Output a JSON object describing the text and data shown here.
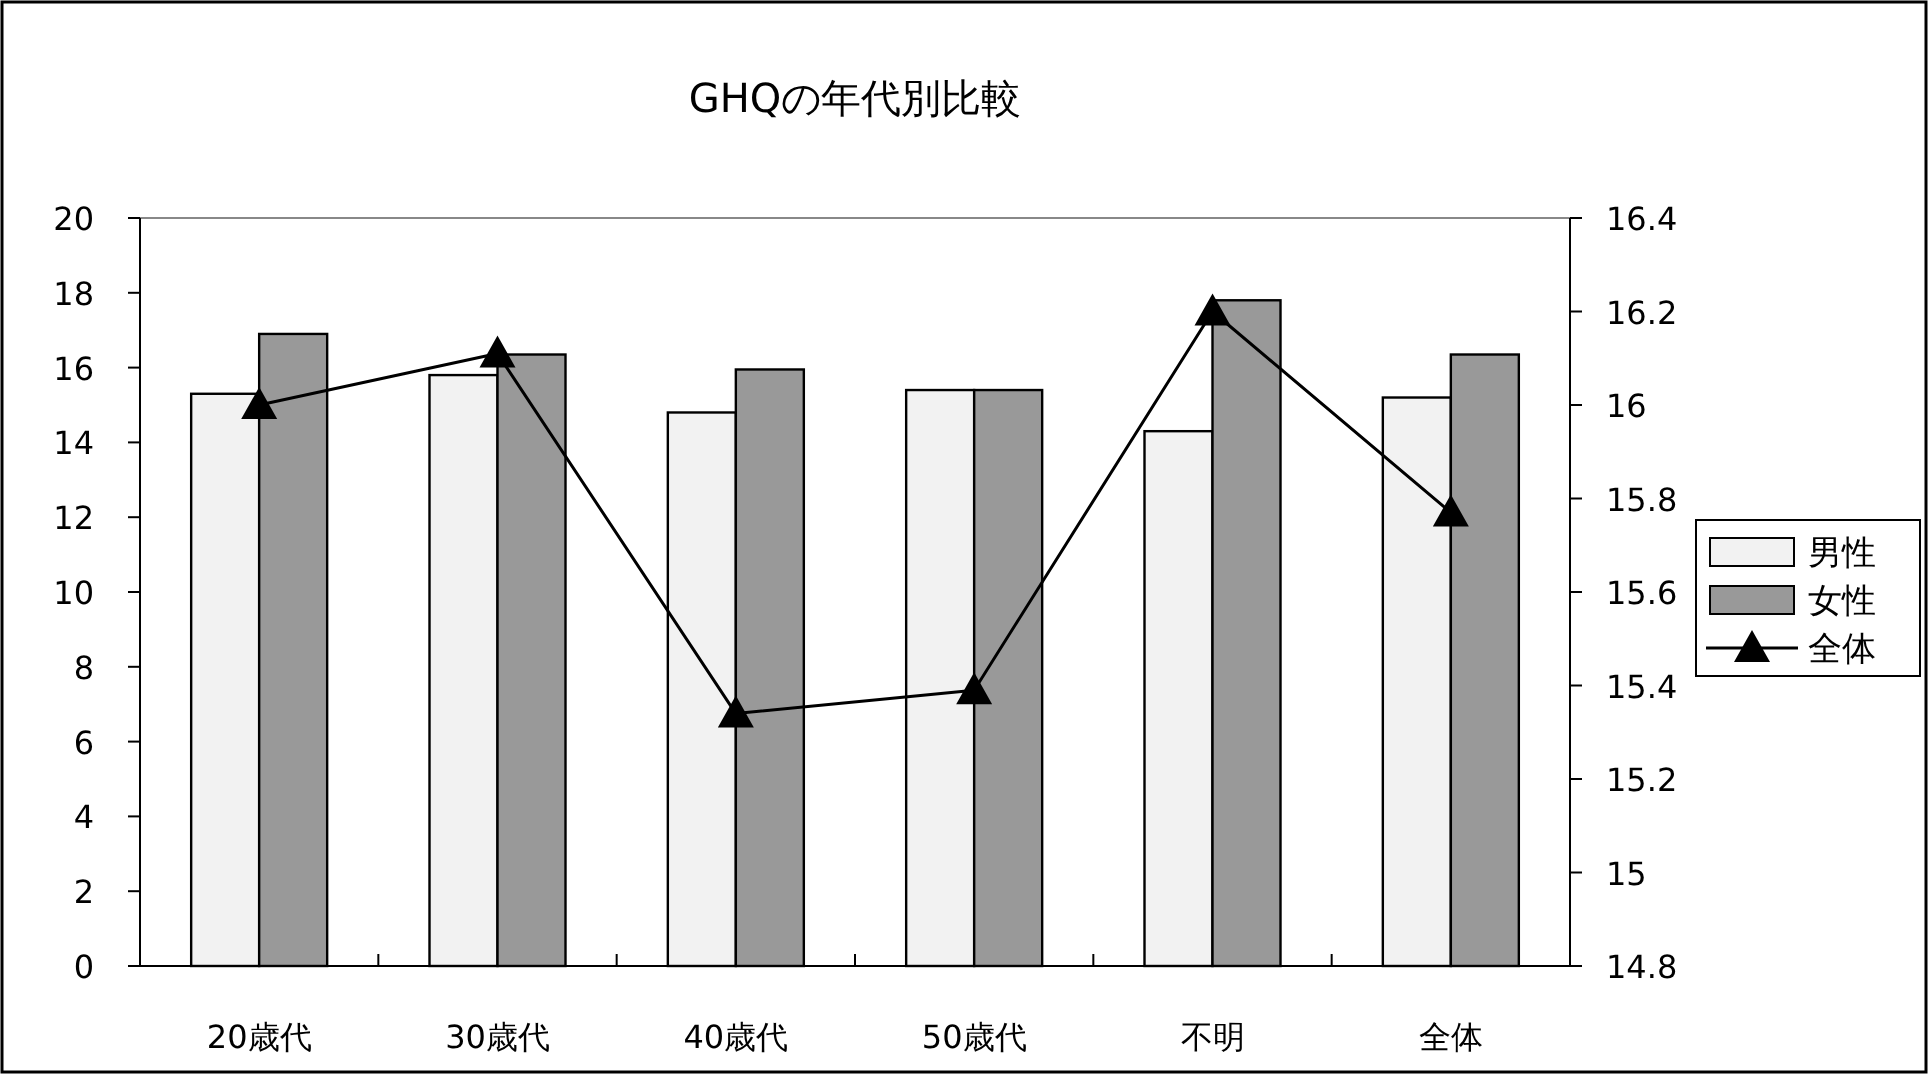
{
  "chart_data": {
    "type": "bar",
    "title": "GHQの年代別比較",
    "categories": [
      "20歳代",
      "30歳代",
      "40歳代",
      "50歳代",
      "不明",
      "全体"
    ],
    "series": [
      {
        "name": "男性",
        "color": "#f2f2f2",
        "values": [
          15.3,
          15.8,
          14.8,
          15.4,
          14.3,
          15.2
        ]
      },
      {
        "name": "女性",
        "color": "#999999",
        "values": [
          16.9,
          16.35,
          15.95,
          15.4,
          17.8,
          16.35
        ]
      },
      {
        "name": "全体",
        "type": "line",
        "axis": "y2",
        "color": "#000000",
        "values": [
          16.0,
          16.11,
          15.34,
          15.39,
          16.2,
          15.77
        ]
      }
    ],
    "ylim": [
      0,
      20
    ],
    "yticks": [
      0,
      2,
      4,
      6,
      8,
      10,
      12,
      14,
      16,
      18,
      20
    ],
    "y2lim": [
      14.8,
      16.4
    ],
    "y2ticks": [
      14.8,
      15,
      15.2,
      15.4,
      15.6,
      15.8,
      16,
      16.2,
      16.4
    ],
    "marker": "triangle",
    "grid": false,
    "legend": "right"
  }
}
